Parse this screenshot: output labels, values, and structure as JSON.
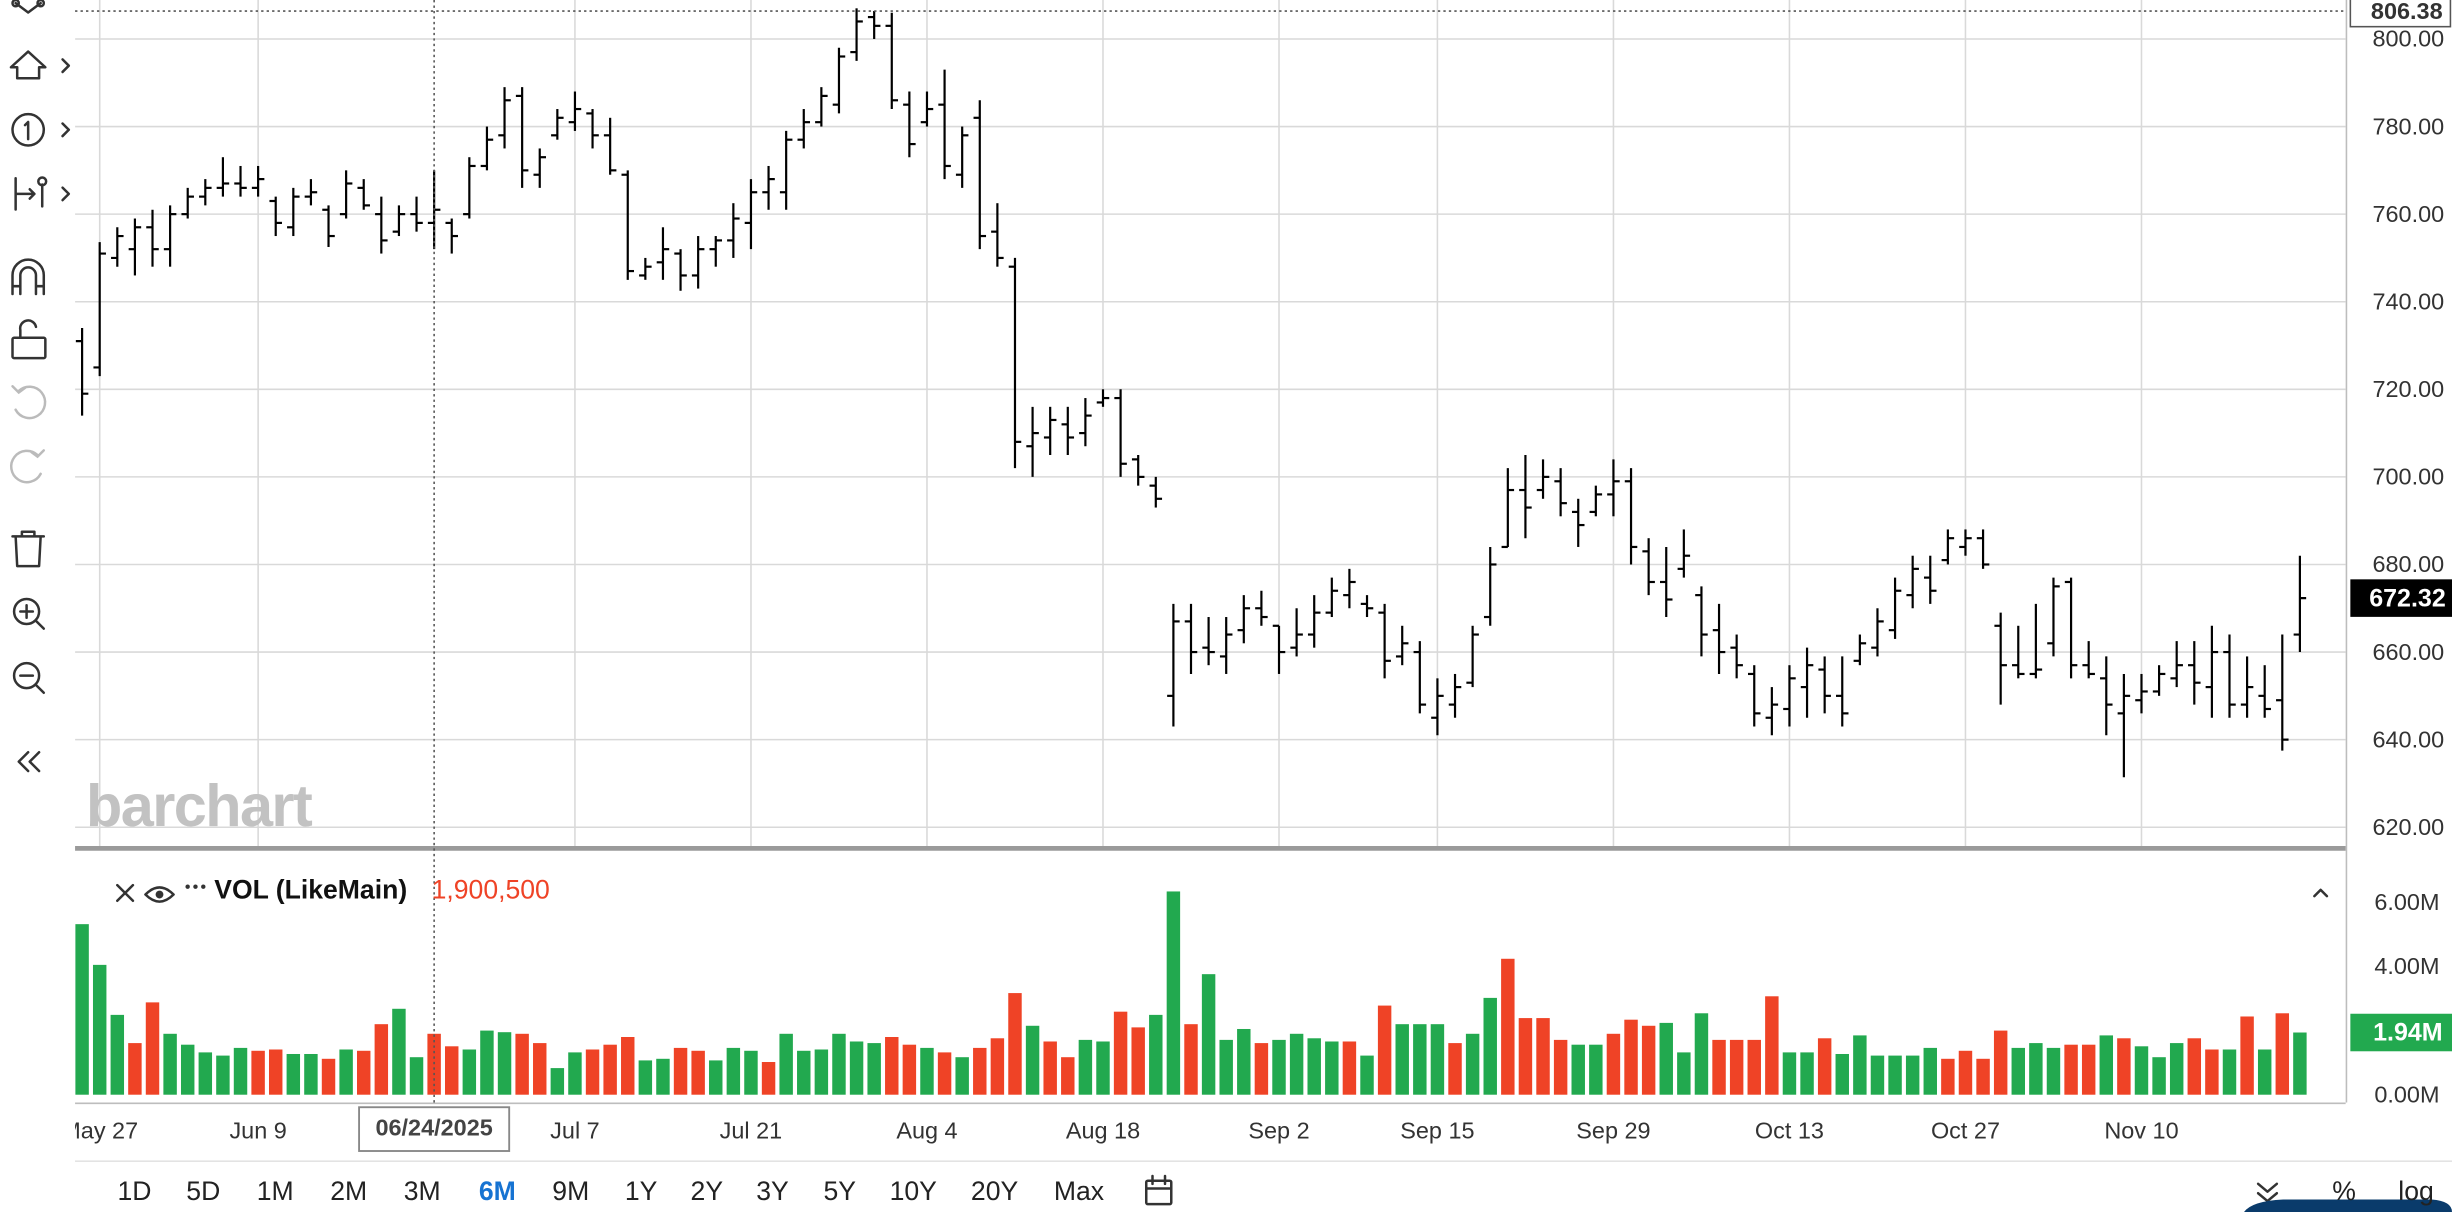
{
  "chart_data": [
    {
      "type": "ohlc",
      "color": "#000000",
      "open": [
        731,
        725,
        750,
        752,
        757,
        752,
        760,
        764,
        766,
        767,
        766,
        763,
        757,
        764,
        761,
        760,
        766,
        760,
        756,
        760,
        758,
        758,
        760,
        771,
        778,
        787,
        769,
        778,
        781,
        783,
        778,
        769,
        746,
        749,
        751,
        746,
        752,
        754,
        758,
        765,
        765,
        777,
        781,
        785,
        797,
        805,
        803,
        785,
        781,
        785,
        769,
        782,
        756,
        748,
        707,
        709,
        712,
        710,
        717,
        718,
        704,
        698,
        650,
        667,
        661,
        659,
        665,
        670,
        666,
        661,
        664,
        669,
        673,
        671,
        669,
        659,
        660,
        645,
        648,
        653,
        668,
        684,
        697,
        697,
        699,
        692,
        692,
        696,
        699,
        683,
        676,
        679,
        673,
        665,
        661,
        655,
        645,
        647,
        652,
        656,
        650,
        658,
        661,
        665,
        673,
        677,
        681,
        684,
        686,
        666,
        657,
        655,
        662,
        676,
        657,
        654,
        646,
        649,
        651,
        654,
        657,
        652,
        660,
        648,
        650,
        649,
        664
      ],
      "high": [
        734,
        753.6,
        757,
        759,
        761,
        762,
        766,
        768,
        773,
        771,
        771,
        764,
        766,
        768,
        762,
        770,
        768,
        764,
        762,
        764,
        770,
        759,
        773,
        780,
        789,
        789,
        775,
        784,
        788,
        784,
        782,
        770,
        750,
        757,
        752,
        755,
        755,
        762.5,
        768,
        771,
        779,
        784,
        789,
        798,
        807,
        806.4,
        806,
        788,
        788,
        793,
        780,
        786,
        762.5,
        750,
        716,
        716,
        716,
        718,
        720,
        720,
        705,
        700,
        671,
        671,
        668,
        668,
        673,
        674,
        666,
        670,
        673,
        677,
        679,
        673,
        671,
        666,
        662.5,
        654,
        655,
        666,
        684,
        702,
        705,
        704,
        702,
        695,
        698,
        704,
        702,
        686,
        684,
        688,
        675,
        671,
        664,
        657,
        652,
        657,
        661,
        659,
        659,
        664,
        670,
        677,
        682,
        682,
        688,
        688,
        688,
        669,
        666,
        671,
        677,
        677,
        662.5,
        659,
        655,
        655,
        657,
        662.5,
        662.5,
        666,
        664,
        659,
        657,
        664,
        682
      ],
      "low": [
        714,
        723,
        748,
        746,
        748,
        748,
        759,
        762,
        764,
        764,
        764,
        755,
        755,
        762,
        752.5,
        759,
        761,
        751,
        755,
        756,
        752,
        751,
        759,
        770,
        775,
        766,
        766,
        777,
        779,
        775,
        769,
        745,
        745,
        745,
        742.5,
        743,
        748,
        750,
        752,
        761,
        761,
        775,
        780,
        783,
        795,
        800,
        784,
        773,
        780,
        768,
        766,
        752,
        748,
        702,
        700,
        705,
        705,
        707,
        716,
        700,
        698,
        693,
        643,
        655,
        657,
        655,
        662,
        666,
        655,
        659,
        661,
        668,
        670,
        668,
        654,
        657,
        646,
        641,
        645,
        652,
        666,
        684,
        686,
        695,
        691,
        684,
        691,
        691,
        680,
        673,
        668,
        677,
        659,
        655,
        654,
        643,
        641,
        643,
        645,
        646,
        643,
        657,
        659,
        663,
        670,
        671,
        680,
        682,
        679,
        648,
        654,
        654,
        659,
        654,
        654,
        641,
        631.4,
        646,
        650,
        652,
        648,
        645,
        645,
        645,
        645,
        637.5,
        660
      ],
      "close": [
        719,
        751,
        755,
        757,
        752,
        760,
        764,
        766,
        767,
        766,
        768,
        758,
        764,
        765,
        755,
        767,
        762,
        754,
        760,
        758,
        761,
        755,
        771,
        777,
        786,
        770,
        773,
        782,
        784,
        778,
        770,
        747,
        748,
        752,
        746,
        752,
        754,
        759,
        765,
        768,
        777,
        781,
        787,
        796,
        804,
        803,
        786,
        776,
        784,
        771,
        778,
        755,
        750,
        708,
        710,
        713,
        709,
        714,
        718,
        703,
        700,
        695,
        667,
        660,
        660,
        664,
        670,
        668,
        660,
        664,
        669,
        674,
        676,
        670,
        658,
        662,
        648,
        650,
        652,
        664,
        680,
        697,
        693,
        700,
        694,
        689,
        696,
        699,
        684,
        676,
        672,
        682,
        664,
        660,
        657,
        646,
        648,
        654,
        657,
        650,
        646,
        662,
        667,
        674,
        679,
        674,
        686,
        686,
        680,
        657,
        655,
        656,
        675,
        657,
        655,
        648,
        650,
        651,
        655,
        657,
        653,
        660,
        648,
        652,
        647,
        640,
        672.32
      ],
      "xlim": [
        -0.4,
        128.6
      ],
      "xticks": [
        {
          "value": 1,
          "label": "May 27"
        },
        {
          "value": 10,
          "label": "Jun 9"
        },
        {
          "value": 28,
          "label": "Jul 7"
        },
        {
          "value": 38,
          "label": "Jul 21"
        },
        {
          "value": 48,
          "label": "Aug 4"
        },
        {
          "value": 58,
          "label": "Aug 18"
        },
        {
          "value": 68,
          "label": "Sep 2"
        },
        {
          "value": 77,
          "label": "Sep 15"
        },
        {
          "value": 87,
          "label": "Sep 29"
        },
        {
          "value": 97,
          "label": "Oct 13"
        },
        {
          "value": 107,
          "label": "Oct 27"
        },
        {
          "value": 117,
          "label": "Nov 10"
        }
      ],
      "ylim": [
        615.7,
        808.9
      ],
      "yticks": [
        {
          "value": 620,
          "label": "620.00"
        },
        {
          "value": 640,
          "label": "640.00"
        },
        {
          "value": 660,
          "label": "660.00"
        },
        {
          "value": 680,
          "label": "680.00"
        },
        {
          "value": 700,
          "label": "700.00"
        },
        {
          "value": 720,
          "label": "720.00"
        },
        {
          "value": 740,
          "label": "740.00"
        },
        {
          "value": 760,
          "label": "760.00"
        },
        {
          "value": 780,
          "label": "780.00"
        },
        {
          "value": 800,
          "label": "800.00"
        }
      ],
      "grid": true,
      "crosshair": {
        "x": 20,
        "label": "06/24/2025",
        "y": 806.38
      }
    },
    {
      "type": "bar",
      "title": "VOL (LikeMain)",
      "values": [
        5320000,
        4050000,
        2490000,
        1610000,
        2880000,
        1900000,
        1560000,
        1320000,
        1220000,
        1460000,
        1370000,
        1410000,
        1270000,
        1270000,
        1120000,
        1410000,
        1370000,
        2200000,
        2680000,
        1170000,
        1900500,
        1510000,
        1410000,
        2000000,
        1950000,
        1900000,
        1610000,
        830000,
        1320000,
        1410000,
        1560000,
        1800000,
        1070000,
        1120000,
        1460000,
        1370000,
        1070000,
        1460000,
        1370000,
        1020000,
        1900000,
        1370000,
        1410000,
        1900000,
        1660000,
        1610000,
        1800000,
        1560000,
        1460000,
        1320000,
        1170000,
        1460000,
        1760000,
        3170000,
        2150000,
        1660000,
        1170000,
        1710000,
        1660000,
        2590000,
        2100000,
        2490000,
        6340000,
        2200000,
        3760000,
        1710000,
        2050000,
        1610000,
        1710000,
        1900000,
        1760000,
        1660000,
        1660000,
        1220000,
        2780000,
        2200000,
        2200000,
        2200000,
        1610000,
        1900000,
        3020000,
        4240000,
        2390000,
        2390000,
        1710000,
        1560000,
        1560000,
        1900000,
        2340000,
        2150000,
        2240000,
        1320000,
        2540000,
        1710000,
        1710000,
        1710000,
        3070000,
        1320000,
        1320000,
        1760000,
        1270000,
        1850000,
        1220000,
        1220000,
        1220000,
        1460000,
        1120000,
        1370000,
        1120000,
        2000000,
        1460000,
        1610000,
        1460000,
        1560000,
        1560000,
        1850000,
        1760000,
        1510000,
        1170000,
        1610000,
        1760000,
        1410000,
        1410000,
        2440000,
        1410000,
        2540000,
        1940000
      ],
      "value_labels": [
        null,
        null,
        null,
        null,
        null,
        null,
        null,
        null,
        null,
        null,
        null,
        null,
        null,
        null,
        null,
        null,
        null,
        null,
        null,
        null,
        "1,900,500",
        null,
        null,
        null,
        null,
        null,
        null,
        null,
        null,
        null,
        null,
        null,
        null,
        null,
        null,
        null,
        null,
        null,
        null,
        null,
        null,
        null,
        null,
        null,
        null,
        null,
        null,
        null,
        null,
        null,
        null,
        null,
        null,
        null,
        null,
        null,
        null,
        null,
        null,
        null,
        null,
        null,
        null,
        null,
        null,
        null,
        null,
        null,
        null,
        null,
        null,
        null,
        null,
        null,
        null,
        null,
        null,
        null,
        null,
        null,
        null,
        null,
        null,
        null,
        null,
        null,
        null,
        null,
        null,
        null,
        null,
        null,
        null,
        null,
        null,
        null,
        null,
        null,
        null,
        null,
        null,
        null,
        null,
        null,
        null,
        null,
        null,
        null,
        null,
        null,
        null,
        null,
        null,
        null,
        null,
        null,
        null,
        null,
        null,
        null,
        null,
        null,
        null,
        null,
        null,
        null,
        "1.94M"
      ],
      "colors": [
        "#22a94f",
        "#22a94f",
        "#22a94f",
        "#ef4326",
        "#ef4326",
        "#22a94f",
        "#22a94f",
        "#22a94f",
        "#22a94f",
        "#22a94f",
        "#ef4326",
        "#ef4326",
        "#22a94f",
        "#22a94f",
        "#ef4326",
        "#22a94f",
        "#ef4326",
        "#ef4326",
        "#22a94f",
        "#22a94f",
        "#ef4326",
        "#ef4326",
        "#22a94f",
        "#22a94f",
        "#22a94f",
        "#ef4326",
        "#ef4326",
        "#22a94f",
        "#22a94f",
        "#ef4326",
        "#ef4326",
        "#ef4326",
        "#22a94f",
        "#22a94f",
        "#ef4326",
        "#ef4326",
        "#22a94f",
        "#22a94f",
        "#22a94f",
        "#ef4326",
        "#22a94f",
        "#22a94f",
        "#22a94f",
        "#22a94f",
        "#22a94f",
        "#22a94f",
        "#ef4326",
        "#ef4326",
        "#22a94f",
        "#ef4326",
        "#22a94f",
        "#ef4326",
        "#ef4326",
        "#ef4326",
        "#22a94f",
        "#ef4326",
        "#ef4326",
        "#22a94f",
        "#22a94f",
        "#ef4326",
        "#ef4326",
        "#22a94f",
        "#22a94f",
        "#ef4326",
        "#22a94f",
        "#22a94f",
        "#22a94f",
        "#ef4326",
        "#22a94f",
        "#22a94f",
        "#22a94f",
        "#22a94f",
        "#ef4326",
        "#22a94f",
        "#ef4326",
        "#22a94f",
        "#22a94f",
        "#22a94f",
        "#ef4326",
        "#22a94f",
        "#22a94f",
        "#ef4326",
        "#ef4326",
        "#ef4326",
        "#ef4326",
        "#22a94f",
        "#22a94f",
        "#ef4326",
        "#ef4326",
        "#ef4326",
        "#22a94f",
        "#22a94f",
        "#22a94f",
        "#ef4326",
        "#ef4326",
        "#ef4326",
        "#ef4326",
        "#22a94f",
        "#22a94f",
        "#ef4326",
        "#22a94f",
        "#22a94f",
        "#22a94f",
        "#22a94f",
        "#22a94f",
        "#22a94f",
        "#ef4326",
        "#ef4326",
        "#ef4326",
        "#ef4326",
        "#22a94f",
        "#22a94f",
        "#22a94f",
        "#ef4326",
        "#ef4326",
        "#22a94f",
        "#ef4326",
        "#22a94f",
        "#22a94f",
        "#22a94f",
        "#ef4326",
        "#ef4326",
        "#22a94f",
        "#ef4326",
        "#22a94f",
        "#ef4326",
        "#22a94f"
      ],
      "ylim": [
        -244000,
        7561000
      ],
      "yticks": [
        {
          "value": 0,
          "label": "0.00M"
        },
        {
          "value": 4000000,
          "label": "4.00M"
        },
        {
          "value": 6000000,
          "label": "6.00M"
        }
      ]
    }
  ],
  "watermark": "barchart",
  "range_buttons": [
    "1D",
    "5D",
    "1M",
    "2M",
    "3M",
    "6M",
    "9M",
    "1Y",
    "2Y",
    "3Y",
    "5Y",
    "10Y",
    "20Y",
    "Max"
  ],
  "selected_range": 5,
  "right_controls": [
    "%",
    "log"
  ]
}
